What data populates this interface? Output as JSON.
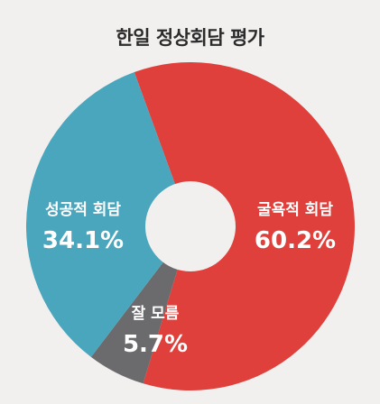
{
  "chart_data": {
    "type": "pie",
    "title": "한일 정상회담 평가",
    "slices": [
      {
        "label": "굴욕적 회담",
        "value": 60.2,
        "value_label": "60.2%",
        "color": "#e0403b"
      },
      {
        "label": "잘 모름",
        "value": 5.7,
        "value_label": "5.7%",
        "color": "#6b6a6c"
      },
      {
        "label": "성공적 회담",
        "value": 34.1,
        "value_label": "34.1%",
        "color": "#4aa6bd"
      }
    ],
    "start_angle_deg": -20,
    "direction": "clockwise",
    "donut": true
  }
}
